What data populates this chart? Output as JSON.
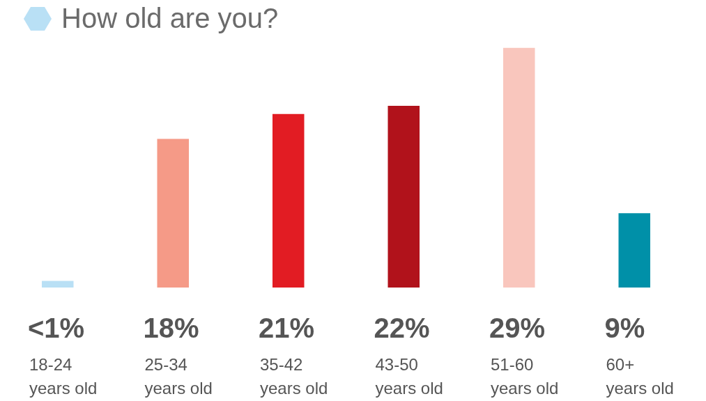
{
  "chart_data": {
    "type": "bar",
    "title": "How old are you?",
    "categories": [
      "18-24 years old",
      "25-34 years old",
      "35-42 years old",
      "43-50 years old",
      "51-60 years old",
      "60+ years old"
    ],
    "values": [
      0.8,
      18,
      21,
      22,
      29,
      9
    ],
    "colors": [
      "#b9e0f5",
      "#f59a87",
      "#e21c23",
      "#b1121b",
      "#f9c6bd",
      "#0090a8"
    ],
    "value_labels": [
      "<1%",
      "18%",
      "21%",
      "22%",
      "29%",
      "9%"
    ],
    "legend": false,
    "tick_labels": false
  }
}
